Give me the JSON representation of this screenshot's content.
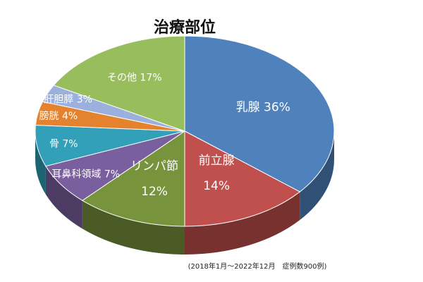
{
  "chart_data": {
    "type": "pie",
    "title": "治療部位",
    "note": "(2018年1月～2022年12月　症例数900例)",
    "slices": [
      {
        "name": "乳腺",
        "value": 36,
        "label": "36%",
        "color": "#4f81bd"
      },
      {
        "name": "前立腺",
        "value": 14,
        "label": "14%",
        "color": "#c0504d"
      },
      {
        "name": "リンパ節",
        "value": 12,
        "label": "12%",
        "color": "#77933c"
      },
      {
        "name": "耳鼻科領域",
        "value": 7,
        "label": "7%",
        "color": "#7a5f9e"
      },
      {
        "name": "骨",
        "value": 7,
        "label": "7%",
        "color": "#31a0b8"
      },
      {
        "name": "膀胱",
        "value": 4,
        "label": "4%",
        "color": "#e5822e"
      },
      {
        "name": "肝胆膵",
        "value": 3,
        "label": "3%",
        "color": "#9bb0dc"
      },
      {
        "name": "その他",
        "value": 17,
        "label": "17%",
        "color": "#98bd5c"
      }
    ]
  }
}
